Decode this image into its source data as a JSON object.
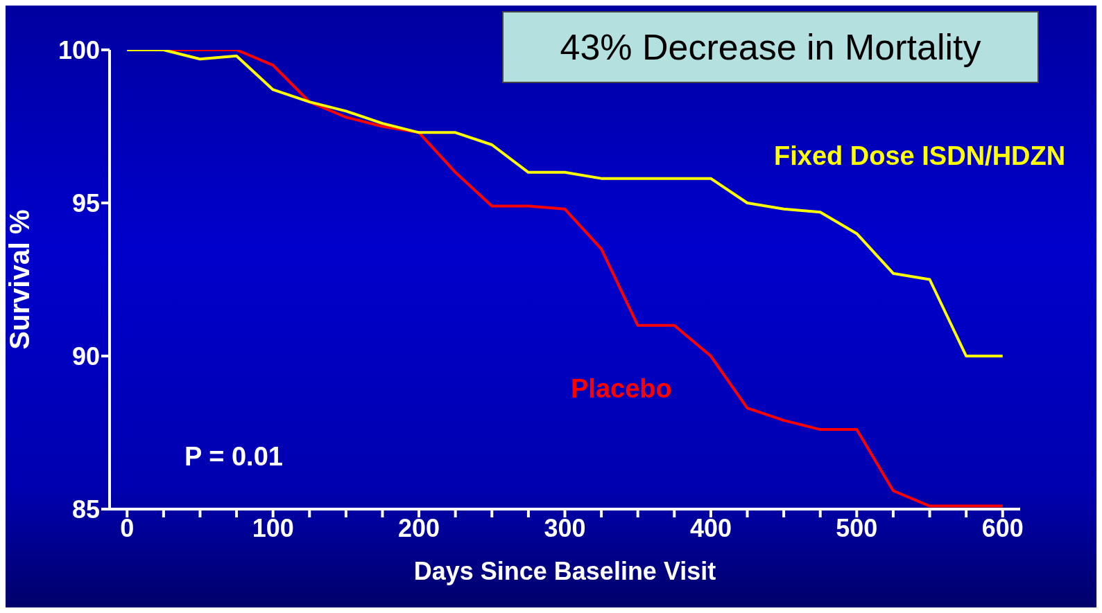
{
  "chart_data": {
    "type": "line",
    "title": "43% Decrease in Mortality",
    "xlabel": "Days Since Baseline Visit",
    "ylabel": "Survival %",
    "annotations": [
      "P = 0.01"
    ],
    "x": [
      0,
      25,
      50,
      75,
      100,
      125,
      150,
      175,
      200,
      225,
      250,
      275,
      300,
      325,
      350,
      375,
      400,
      425,
      450,
      475,
      500,
      525,
      550,
      575,
      600
    ],
    "series": [
      {
        "name": "Fixed Dose ISDN/HDZN",
        "color": "#ffff00",
        "values": [
          100,
          100,
          99.7,
          99.8,
          98.7,
          98.3,
          98.0,
          97.6,
          97.3,
          97.3,
          96.9,
          96.0,
          96.0,
          95.8,
          95.8,
          95.8,
          95.8,
          95.0,
          94.8,
          94.7,
          94.0,
          92.7,
          92.5,
          90.0,
          90.0
        ]
      },
      {
        "name": "Placebo",
        "color": "#ff0000",
        "values": [
          100,
          100,
          100,
          100,
          99.5,
          98.3,
          97.8,
          97.5,
          97.3,
          96.0,
          94.9,
          94.9,
          94.8,
          93.5,
          91.0,
          91.0,
          90.0,
          88.3,
          87.9,
          87.6,
          87.6,
          85.6,
          85.1,
          85.1,
          85.1
        ]
      }
    ],
    "xlim": [
      -12,
      612
    ],
    "xticks": [
      0,
      {
        "value": 25,
        "label": null
      },
      {
        "value": 50,
        "label": null
      },
      {
        "value": 75,
        "label": null
      },
      100,
      {
        "value": 125,
        "label": null
      },
      {
        "value": 150,
        "label": null
      },
      {
        "value": 175,
        "label": null
      },
      200,
      {
        "value": 225,
        "label": null
      },
      {
        "value": 250,
        "label": null
      },
      {
        "value": 275,
        "label": null
      },
      300,
      {
        "value": 325,
        "label": null
      },
      {
        "value": 350,
        "label": null
      },
      {
        "value": 375,
        "label": null
      },
      400,
      {
        "value": 425,
        "label": null
      },
      {
        "value": 450,
        "label": null
      },
      {
        "value": 475,
        "label": null
      },
      500,
      {
        "value": 525,
        "label": null
      },
      {
        "value": 550,
        "label": null
      },
      {
        "value": 575,
        "label": null
      },
      600
    ],
    "ylim": [
      85,
      100
    ],
    "yticks": [
      85,
      90,
      95,
      100
    ],
    "grid": false,
    "legend": false,
    "marker": "none",
    "line_style": "solid"
  }
}
